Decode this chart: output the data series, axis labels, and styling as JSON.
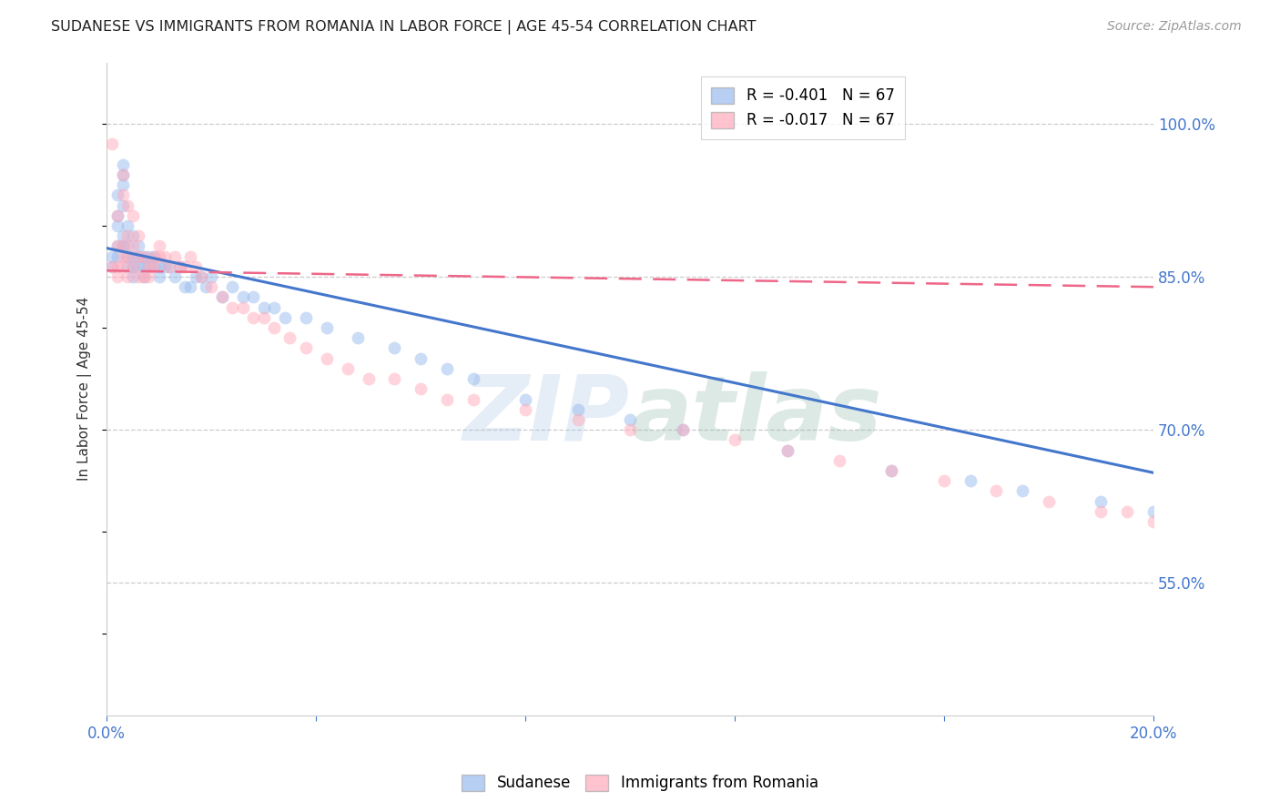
{
  "title": "SUDANESE VS IMMIGRANTS FROM ROMANIA IN LABOR FORCE | AGE 45-54 CORRELATION CHART",
  "source": "Source: ZipAtlas.com",
  "ylabel": "In Labor Force | Age 45-54",
  "x_min": 0.0,
  "x_max": 0.2,
  "y_min": 0.42,
  "y_max": 1.06,
  "x_ticks": [
    0.0,
    0.04,
    0.08,
    0.12,
    0.16,
    0.2
  ],
  "x_tick_labels": [
    "0.0%",
    "",
    "",
    "",
    "",
    "20.0%"
  ],
  "y_ticks": [
    0.55,
    0.7,
    0.85,
    1.0
  ],
  "y_tick_labels": [
    "55.0%",
    "70.0%",
    "85.0%",
    "100.0%"
  ],
  "grid_color": "#cccccc",
  "background_color": "#ffffff",
  "watermark_zip": "ZIP",
  "watermark_atlas": "atlas",
  "legend_r1": "R = -0.401",
  "legend_n1": "N = 67",
  "legend_r2": "R = -0.017",
  "legend_n2": "N = 67",
  "blue_color": "#99bbee",
  "pink_color": "#ffaabb",
  "line_blue": "#4477cc",
  "line_pink": "#ee6688",
  "sudanese_x": [
    0.001,
    0.001,
    0.002,
    0.002,
    0.002,
    0.002,
    0.002,
    0.003,
    0.003,
    0.003,
    0.003,
    0.003,
    0.003,
    0.004,
    0.004,
    0.004,
    0.004,
    0.005,
    0.005,
    0.005,
    0.005,
    0.006,
    0.006,
    0.006,
    0.007,
    0.007,
    0.007,
    0.008,
    0.008,
    0.009,
    0.009,
    0.01,
    0.01,
    0.011,
    0.012,
    0.013,
    0.014,
    0.015,
    0.016,
    0.017,
    0.018,
    0.019,
    0.02,
    0.022,
    0.024,
    0.026,
    0.028,
    0.03,
    0.032,
    0.034,
    0.038,
    0.042,
    0.048,
    0.055,
    0.06,
    0.065,
    0.07,
    0.08,
    0.09,
    0.1,
    0.11,
    0.13,
    0.15,
    0.165,
    0.175,
    0.19,
    0.2
  ],
  "sudanese_y": [
    0.87,
    0.86,
    0.93,
    0.91,
    0.9,
    0.88,
    0.87,
    0.96,
    0.95,
    0.94,
    0.92,
    0.89,
    0.88,
    0.9,
    0.88,
    0.87,
    0.86,
    0.89,
    0.87,
    0.86,
    0.85,
    0.88,
    0.87,
    0.86,
    0.87,
    0.86,
    0.85,
    0.87,
    0.86,
    0.87,
    0.86,
    0.86,
    0.85,
    0.86,
    0.86,
    0.85,
    0.86,
    0.84,
    0.84,
    0.85,
    0.85,
    0.84,
    0.85,
    0.83,
    0.84,
    0.83,
    0.83,
    0.82,
    0.82,
    0.81,
    0.81,
    0.8,
    0.79,
    0.78,
    0.77,
    0.76,
    0.75,
    0.73,
    0.72,
    0.71,
    0.7,
    0.68,
    0.66,
    0.65,
    0.64,
    0.63,
    0.62
  ],
  "romania_x": [
    0.001,
    0.001,
    0.002,
    0.002,
    0.002,
    0.002,
    0.003,
    0.003,
    0.003,
    0.003,
    0.003,
    0.004,
    0.004,
    0.004,
    0.004,
    0.005,
    0.005,
    0.005,
    0.006,
    0.006,
    0.006,
    0.007,
    0.007,
    0.008,
    0.008,
    0.009,
    0.009,
    0.01,
    0.01,
    0.011,
    0.012,
    0.013,
    0.014,
    0.015,
    0.016,
    0.017,
    0.018,
    0.02,
    0.022,
    0.024,
    0.026,
    0.028,
    0.03,
    0.032,
    0.035,
    0.038,
    0.042,
    0.046,
    0.05,
    0.055,
    0.06,
    0.065,
    0.07,
    0.08,
    0.09,
    0.1,
    0.11,
    0.12,
    0.13,
    0.14,
    0.15,
    0.16,
    0.17,
    0.18,
    0.19,
    0.195,
    0.2
  ],
  "romania_y": [
    0.86,
    0.98,
    0.91,
    0.88,
    0.86,
    0.85,
    0.95,
    0.93,
    0.88,
    0.87,
    0.86,
    0.92,
    0.89,
    0.87,
    0.85,
    0.91,
    0.88,
    0.86,
    0.89,
    0.87,
    0.85,
    0.87,
    0.85,
    0.86,
    0.85,
    0.87,
    0.86,
    0.88,
    0.87,
    0.87,
    0.86,
    0.87,
    0.86,
    0.86,
    0.87,
    0.86,
    0.85,
    0.84,
    0.83,
    0.82,
    0.82,
    0.81,
    0.81,
    0.8,
    0.79,
    0.78,
    0.77,
    0.76,
    0.75,
    0.75,
    0.74,
    0.73,
    0.73,
    0.72,
    0.71,
    0.7,
    0.7,
    0.69,
    0.68,
    0.67,
    0.66,
    0.65,
    0.64,
    0.63,
    0.62,
    0.62,
    0.61
  ],
  "blue_line_x": [
    0.0,
    0.2
  ],
  "blue_line_y": [
    0.878,
    0.658
  ],
  "pink_line_x": [
    0.0,
    0.2
  ],
  "pink_line_y": [
    0.856,
    0.84
  ]
}
